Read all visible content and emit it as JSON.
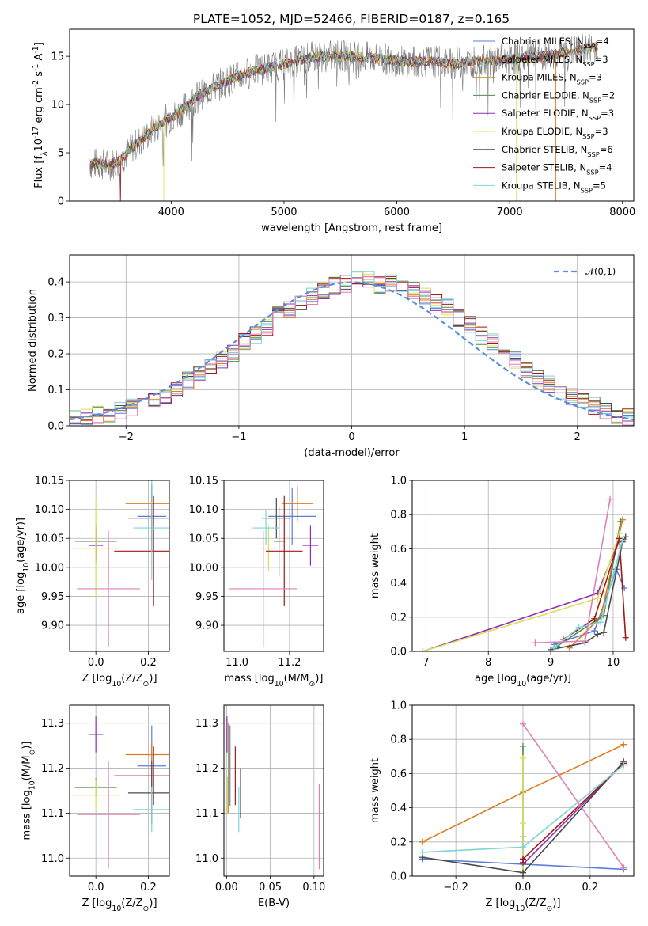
{
  "figure_title": "PLATE=1052, MJD=52466, FIBERID=0187, z=0.165",
  "colors": {
    "Chabrier MILES": "#5b7fd6",
    "Salpeter MILES": "#e07a1f",
    "Kroupa MILES": "#c89a2a",
    "Chabrier ELODIE": "#4f8a4f",
    "Salpeter ELODIE": "#8e2fb3",
    "Kroupa ELODIE": "#d9e05a",
    "Chabrier STELIB": "#4a4a4a",
    "Salpeter STELIB": "#a01818",
    "Kroupa STELIB": "#7fd4d8",
    "pink": "#e07fb8",
    "normal": "#5b8fdb",
    "spectrum": "#7a7a7a"
  },
  "chart_data": [
    {
      "id": "spectrum",
      "type": "line",
      "title": "PLATE=1052, MJD=52466, FIBERID=0187, z=0.165",
      "xlabel": "wavelength [Angstrom, rest frame]",
      "ylabel": "Flux [f$_\\lambda$10$^{-17}$ erg cm$^{-2}$ s$^{-1}$ A$^{-1}$]",
      "xlim": [
        3100,
        8100
      ],
      "ylim": [
        0,
        17.8
      ],
      "xticks": [
        4000,
        5000,
        6000,
        7000,
        8000
      ],
      "yticks": [
        0,
        5,
        10,
        15
      ],
      "grid": false,
      "legend_position": "top-right",
      "envelope": {
        "x": [
          3280,
          3350,
          3450,
          3550,
          3650,
          3750,
          3850,
          3950,
          4050,
          4150,
          4250,
          4350,
          4450,
          4550,
          4650,
          4750,
          4850,
          4950,
          5050,
          5150,
          5250,
          5350,
          5500,
          5700,
          5900,
          6100,
          6300,
          6500,
          6700,
          6900,
          7100,
          7300,
          7500,
          7700,
          7800
        ],
        "y": [
          3.8,
          3.9,
          3.7,
          4.2,
          5.5,
          6.5,
          7.5,
          8.4,
          9.0,
          10.0,
          11.0,
          11.6,
          12.2,
          12.7,
          13.2,
          13.5,
          13.8,
          14.0,
          14.3,
          14.6,
          14.9,
          15.0,
          15.0,
          14.9,
          14.7,
          14.4,
          14.5,
          14.2,
          14.5,
          14.6,
          14.8,
          15.0,
          15.4,
          15.8,
          16.0
        ]
      },
      "legend": [
        "Chabrier MILES, N$_{SSP}$=4",
        "Salpeter MILES, N$_{SSP}$=3",
        "Kroupa MILES, N$_{SSP}$=3",
        "Chabrier ELODIE, N$_{SSP}$=2",
        "Salpeter ELODIE, N$_{SSP}$=3",
        "Kroupa ELODIE, N$_{SSP}$=3",
        "Chabrier STELIB, N$_{SSP}$=6",
        "Salpeter STELIB, N$_{SSP}$=4",
        "Kroupa STELIB, N$_{SSP}$=5"
      ]
    },
    {
      "id": "residuals",
      "type": "line",
      "xlabel": "(data-model)/error",
      "ylabel": "Normed distribution",
      "xlim": [
        -2.5,
        2.5
      ],
      "ylim": [
        0,
        0.475
      ],
      "xticks": [
        -2,
        -1,
        0,
        1,
        2
      ],
      "yticks": [
        0.0,
        0.1,
        0.2,
        0.3,
        0.4
      ],
      "grid": true,
      "legend_position": "top-right",
      "legend": [
        "$\\mathcal{N}(0,1)$"
      ],
      "bin_width": 0.1,
      "histogram_approx": [
        0.018,
        0.022,
        0.03,
        0.032,
        0.04,
        0.05,
        0.06,
        0.07,
        0.085,
        0.1,
        0.125,
        0.15,
        0.165,
        0.18,
        0.2,
        0.235,
        0.25,
        0.275,
        0.31,
        0.325,
        0.345,
        0.36,
        0.375,
        0.39,
        0.395,
        0.41,
        0.405,
        0.39,
        0.395,
        0.385,
        0.375,
        0.36,
        0.345,
        0.33,
        0.3,
        0.28,
        0.25,
        0.235,
        0.205,
        0.18,
        0.155,
        0.13,
        0.115,
        0.095,
        0.08,
        0.065,
        0.055,
        0.04,
        0.03,
        0.025
      ]
    },
    {
      "id": "age-vs-Z",
      "type": "scatter",
      "xlabel": "Z [log$_{10}$($Z/Z_\\odot$)]",
      "ylabel": "age  [log$_{10}$($age/yr$)]",
      "xlim": [
        -0.1,
        0.28
      ],
      "ylim": [
        9.855,
        10.15
      ],
      "xticks": [
        0.0,
        0.2
      ],
      "yticks": [
        9.9,
        9.95,
        10.0,
        10.05,
        10.1,
        10.15
      ],
      "grid": true,
      "points": [
        {
          "series": "Chabrier MILES",
          "x": 0.213,
          "y": 10.088,
          "xerr": 0.055,
          "yerr": 0.05
        },
        {
          "series": "Salpeter MILES",
          "x": 0.213,
          "y": 10.11,
          "xerr": 0.1,
          "yerr": 0.03
        },
        {
          "series": "Chabrier ELODIE",
          "x": 0.0,
          "y": 10.045,
          "xerr": 0.08,
          "yerr": 0.03
        },
        {
          "series": "Salpeter ELODIE",
          "x": 0.0,
          "y": 10.038,
          "xerr": 0.028,
          "yerr": 0.03
        },
        {
          "series": "Kroupa ELODIE",
          "x": 0.0,
          "y": 10.033,
          "xerr": 0.093,
          "yerr": 0.085
        },
        {
          "series": "Chabrier STELIB",
          "x": 0.213,
          "y": 10.085,
          "xerr": 0.09,
          "yerr": 0.06
        },
        {
          "series": "Salpeter STELIB",
          "x": 0.22,
          "y": 10.028,
          "xerr": 0.15,
          "yerr": 0.095
        },
        {
          "series": "Kroupa STELIB",
          "x": 0.213,
          "y": 10.068,
          "xerr": 0.07,
          "yerr": 0.09
        },
        {
          "series": "pink",
          "x": 0.048,
          "y": 9.963,
          "xerr": 0.12,
          "yerr": 0.1
        }
      ]
    },
    {
      "id": "age-vs-mass",
      "type": "scatter",
      "xlabel": "mass [log$_{10}$($M/M_\\odot$)]",
      "ylabel": "",
      "xlim": [
        10.95,
        11.33
      ],
      "ylim": [
        9.855,
        10.15
      ],
      "xticks": [
        11.0,
        11.2
      ],
      "yticks": [
        9.9,
        9.95,
        10.0,
        10.05,
        10.1,
        10.15
      ],
      "grid": true,
      "points": [
        {
          "series": "Chabrier MILES",
          "x": 11.21,
          "y": 10.088,
          "xerr": 0.09,
          "yerr": 0.05
        },
        {
          "series": "Salpeter MILES",
          "x": 11.23,
          "y": 10.11,
          "xerr": 0.06,
          "yerr": 0.03
        },
        {
          "series": "Chabrier ELODIE",
          "x": 11.16,
          "y": 10.045,
          "xerr": 0.02,
          "yerr": 0.06
        },
        {
          "series": "Salpeter ELODIE",
          "x": 11.28,
          "y": 10.038,
          "xerr": 0.03,
          "yerr": 0.035
        },
        {
          "series": "Kroupa ELODIE",
          "x": 11.12,
          "y": 10.033,
          "xerr": 0.03,
          "yerr": 0.04
        },
        {
          "series": "Chabrier STELIB",
          "x": 11.15,
          "y": 10.085,
          "xerr": 0.055,
          "yerr": 0.035
        },
        {
          "series": "Salpeter STELIB",
          "x": 11.18,
          "y": 10.028,
          "xerr": 0.07,
          "yerr": 0.095
        },
        {
          "series": "Kroupa STELIB",
          "x": 11.11,
          "y": 10.068,
          "xerr": 0.05,
          "yerr": 0.03
        },
        {
          "series": "pink",
          "x": 11.1,
          "y": 9.963,
          "xerr": 0.13,
          "yerr": 0.1
        }
      ]
    },
    {
      "id": "weight-vs-age",
      "type": "line",
      "xlabel": "age  [log$_{10}$($age/yr$)]",
      "ylabel": "mass weight",
      "xlim": [
        6.78,
        10.33
      ],
      "ylim": [
        0,
        1.0
      ],
      "xticks": [
        7,
        8,
        9,
        10
      ],
      "yticks": [
        0.0,
        0.2,
        0.4,
        0.6,
        0.8,
        1.0
      ],
      "grid": true,
      "series": [
        {
          "name": "Chabrier MILES",
          "x": [
            9.05,
            9.7,
            10.05,
            10.18
          ],
          "y": [
            0.04,
            0.12,
            0.48,
            0.37
          ]
        },
        {
          "name": "Salpeter MILES",
          "x": [
            9.3,
            9.8,
            10.15
          ],
          "y": [
            0.02,
            0.2,
            0.77
          ]
        },
        {
          "name": "Chabrier ELODIE",
          "x": [
            9.1,
            9.85,
            10.12
          ],
          "y": [
            0.03,
            0.21,
            0.76
          ]
        },
        {
          "name": "Salpeter ELODIE",
          "x": [
            6.95,
            9.75,
            10.1
          ],
          "y": [
            0.0,
            0.34,
            0.66
          ]
        },
        {
          "name": "Kroupa ELODIE",
          "x": [
            6.95,
            9.75,
            10.1
          ],
          "y": [
            0.0,
            0.31,
            0.69
          ]
        },
        {
          "name": "Chabrier STELIB",
          "x": [
            9.0,
            9.55,
            9.75,
            9.85,
            10.15,
            10.2
          ],
          "y": [
            0.01,
            0.05,
            0.1,
            0.11,
            0.64,
            0.67
          ]
        },
        {
          "name": "Salpeter STELIB",
          "x": [
            9.2,
            9.7,
            10.1,
            10.2
          ],
          "y": [
            0.07,
            0.19,
            0.66,
            0.08
          ]
        },
        {
          "name": "Kroupa STELIB",
          "x": [
            9.05,
            9.45,
            9.8,
            10.15
          ],
          "y": [
            0.02,
            0.14,
            0.17,
            0.65
          ]
        },
        {
          "name": "pink",
          "x": [
            8.75,
            9.55,
            9.95
          ],
          "y": [
            0.05,
            0.06,
            0.89
          ]
        }
      ]
    },
    {
      "id": "mass-vs-Z",
      "type": "scatter",
      "xlabel": "Z [log$_{10}$($Z/Z_\\odot$)]",
      "ylabel": "mass [log$_{10}$($M/M_\\odot$)]",
      "xlim": [
        -0.1,
        0.28
      ],
      "ylim": [
        10.96,
        11.34
      ],
      "xticks": [
        0.0,
        0.2
      ],
      "yticks": [
        11.0,
        11.1,
        11.2,
        11.3
      ],
      "grid": true,
      "points": [
        {
          "series": "Chabrier MILES",
          "x": 0.213,
          "y": 11.205,
          "xerr": 0.055,
          "yerr": 0.09
        },
        {
          "series": "Salpeter MILES",
          "x": 0.213,
          "y": 11.23,
          "xerr": 0.1,
          "yerr": 0.03
        },
        {
          "series": "Chabrier ELODIE",
          "x": 0.0,
          "y": 11.157,
          "xerr": 0.08,
          "yerr": 0.02
        },
        {
          "series": "Salpeter ELODIE",
          "x": 0.0,
          "y": 11.275,
          "xerr": 0.028,
          "yerr": 0.04
        },
        {
          "series": "Kroupa ELODIE",
          "x": 0.0,
          "y": 11.14,
          "xerr": 0.093,
          "yerr": 0.035
        },
        {
          "series": "Chabrier STELIB",
          "x": 0.213,
          "y": 11.145,
          "xerr": 0.09,
          "yerr": 0.07
        },
        {
          "series": "Salpeter STELIB",
          "x": 0.22,
          "y": 11.183,
          "xerr": 0.15,
          "yerr": 0.065
        },
        {
          "series": "Kroupa STELIB",
          "x": 0.213,
          "y": 11.108,
          "xerr": 0.07,
          "yerr": 0.05
        },
        {
          "series": "pink",
          "x": 0.048,
          "y": 11.097,
          "xerr": 0.12,
          "yerr": 0.12
        }
      ]
    },
    {
      "id": "mass-vs-EBV",
      "type": "scatter",
      "xlabel": "E(B-V)",
      "ylabel": "",
      "xlim": [
        -0.003,
        0.111
      ],
      "ylim": [
        10.96,
        11.34
      ],
      "xticks": [
        0.0,
        0.05,
        0.1
      ],
      "yticks": [
        11.0,
        11.1,
        11.2,
        11.3
      ],
      "grid": true,
      "points": [
        {
          "series": "Salpeter ELODIE",
          "x": 0.0005,
          "y": 11.275,
          "xerr": 0,
          "yerr": 0.04
        },
        {
          "series": "Kroupa ELODIE",
          "x": 0.001,
          "y": 11.14,
          "xerr": 0,
          "yerr": 0.04
        },
        {
          "series": "Kroupa MILES",
          "x": 0.002,
          "y": 11.2,
          "xerr": 0,
          "yerr": 0.1
        },
        {
          "series": "Chabrier MILES",
          "x": 0.004,
          "y": 11.205,
          "xerr": 0,
          "yerr": 0.09
        },
        {
          "series": "Salpeter STELIB",
          "x": 0.01,
          "y": 11.183,
          "xerr": 0,
          "yerr": 0.065
        },
        {
          "series": "Kroupa STELIB",
          "x": 0.014,
          "y": 11.108,
          "xerr": 0,
          "yerr": 0.05
        },
        {
          "series": "Chabrier STELIB",
          "x": 0.016,
          "y": 11.145,
          "xerr": 0,
          "yerr": 0.055
        },
        {
          "series": "pink",
          "x": 0.106,
          "y": 11.07,
          "xerr": 0,
          "yerr": 0.095
        }
      ]
    },
    {
      "id": "weight-vs-Z",
      "type": "line",
      "xlabel": "Z [log$_{10}$($Z/Z_\\odot$)]",
      "ylabel": "mass weight",
      "xlim": [
        -0.33,
        0.33
      ],
      "ylim": [
        0,
        1.0
      ],
      "xticks": [
        -0.2,
        0.0,
        0.2
      ],
      "yticks": [
        0.0,
        0.2,
        0.4,
        0.6,
        0.8,
        1.0
      ],
      "grid": true,
      "series": [
        {
          "name": "Chabrier MILES",
          "x": [
            -0.3,
            0.0,
            0.3
          ],
          "y": [
            0.1,
            0.07,
            0.04
          ]
        },
        {
          "name": "Salpeter MILES",
          "x": [
            -0.3,
            0.0,
            0.3
          ],
          "y": [
            0.2,
            0.49,
            0.77
          ]
        },
        {
          "name": "Chabrier ELODIE",
          "x": [
            0.0,
            0.0,
            0.0
          ],
          "y": [
            0.76,
            0.23,
            0.02
          ]
        },
        {
          "name": "Salpeter ELODIE",
          "x": [
            0.0,
            0.0,
            0.3
          ],
          "y": [
            0.1,
            0.07,
            0.66
          ]
        },
        {
          "name": "Kroupa ELODIE",
          "x": [
            0.0,
            0.0,
            0.0
          ],
          "y": [
            0.69,
            0.31,
            0.0
          ]
        },
        {
          "name": "Chabrier STELIB",
          "x": [
            -0.3,
            0.0,
            0.3
          ],
          "y": [
            0.11,
            0.02,
            0.67
          ]
        },
        {
          "name": "Salpeter STELIB",
          "x": [
            0.0,
            0.0,
            0.3
          ],
          "y": [
            0.08,
            0.1,
            0.66
          ]
        },
        {
          "name": "Kroupa STELIB",
          "x": [
            -0.3,
            0.0,
            0.3
          ],
          "y": [
            0.14,
            0.17,
            0.65
          ]
        },
        {
          "name": "pink",
          "x": [
            0.0,
            0.3
          ],
          "y": [
            0.89,
            0.05
          ]
        }
      ]
    }
  ]
}
